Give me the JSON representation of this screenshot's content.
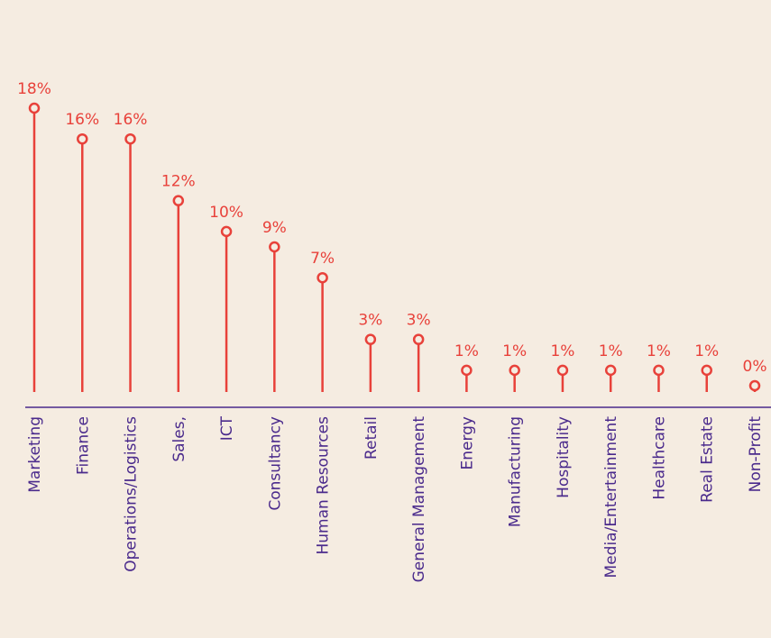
{
  "chart_data": {
    "type": "lollipop",
    "categories": [
      "Marketing",
      "Finance",
      "Operations/Logistics",
      "Sales,",
      "ICT",
      "Consultancy",
      "Human Resources",
      "Retail",
      "General Management",
      "Energy",
      "Manufacturing",
      "Hospitality",
      "Media/Entertainment",
      "Healthcare",
      "Real Estate",
      "Non-Profit"
    ],
    "values": [
      18,
      16,
      16,
      12,
      10,
      9,
      7,
      3,
      3,
      1,
      1,
      1,
      1,
      1,
      1,
      0
    ],
    "value_labels": [
      "18%",
      "16%",
      "16%",
      "12%",
      "10%",
      "9%",
      "7%",
      "3%",
      "3%",
      "1%",
      "1%",
      "1%",
      "1%",
      "1%",
      "1%",
      "0%"
    ],
    "color": "#e8413a",
    "label_color": "#4a2a8c"
  }
}
